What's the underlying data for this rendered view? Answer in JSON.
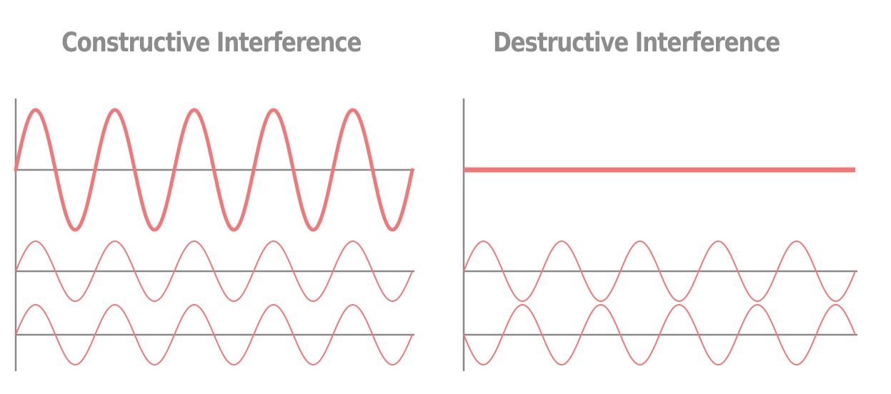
{
  "titles": {
    "constructive": "Constructive Interference",
    "destructive": "Destructive Interference"
  },
  "colors": {
    "wave": "#f07878",
    "axis": "#8a8a8a",
    "title": "#8c8c8c"
  },
  "constructive": {
    "cycles": 5,
    "input_wave_1": {
      "amplitude": 1,
      "phase_deg": 0
    },
    "input_wave_2": {
      "amplitude": 1,
      "phase_deg": 0
    },
    "resultant_wave": {
      "amplitude": 2
    }
  },
  "destructive": {
    "cycles": 5,
    "input_wave_1": {
      "amplitude": 1,
      "phase_deg": 0
    },
    "input_wave_2": {
      "amplitude": 1,
      "phase_deg": 180
    },
    "resultant_wave": {
      "amplitude": 0
    }
  }
}
